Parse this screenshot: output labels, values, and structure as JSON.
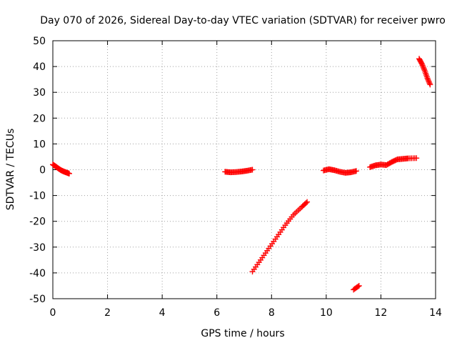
{
  "chart_data": {
    "type": "scatter",
    "title": "Day 070 of 2026, Sidereal Day-to-day VTEC variation (SDTVAR) for receiver pwro",
    "xlabel": "GPS time / hours",
    "ylabel": "SDTVAR / TECUs",
    "xlim": [
      0,
      14
    ],
    "ylim": [
      -50,
      50
    ],
    "xticks": [
      0,
      2,
      4,
      6,
      8,
      10,
      12,
      14
    ],
    "yticks": [
      -50,
      -40,
      -30,
      -20,
      -10,
      0,
      10,
      20,
      30,
      40,
      50
    ],
    "grid": true,
    "marker": "plus",
    "color": "#ff0000",
    "segments": [
      {
        "x": [
          0.0,
          0.1,
          0.2,
          0.3,
          0.4,
          0.5,
          0.6
        ],
        "y": [
          2.0,
          1.3,
          0.5,
          -0.2,
          -0.7,
          -1.1,
          -1.5
        ]
      },
      {
        "x": [
          6.3,
          6.5,
          6.7,
          6.9,
          7.1,
          7.3
        ],
        "y": [
          -0.8,
          -1.0,
          -0.9,
          -0.7,
          -0.4,
          0.0
        ]
      },
      {
        "x": [
          7.3,
          7.6,
          7.9,
          8.2,
          8.5,
          8.8,
          9.1,
          9.3
        ],
        "y": [
          -39.5,
          -35.0,
          -30.5,
          -26.0,
          -21.5,
          -17.5,
          -14.5,
          -12.5
        ]
      },
      {
        "x": [
          9.9,
          10.1,
          10.3,
          10.5,
          10.7,
          10.9,
          11.1
        ],
        "y": [
          -0.3,
          0.2,
          -0.2,
          -0.8,
          -1.2,
          -1.0,
          -0.5
        ]
      },
      {
        "x": [
          11.0,
          11.2
        ],
        "y": [
          -46.5,
          -45.0
        ]
      },
      {
        "x": [
          11.6,
          11.8,
          12.0,
          12.2,
          12.4,
          12.6,
          12.8,
          13.0,
          13.3
        ],
        "y": [
          1.0,
          1.7,
          2.0,
          1.8,
          3.0,
          4.0,
          4.2,
          4.4,
          4.5
        ]
      },
      {
        "x": [
          13.4,
          13.5,
          13.6,
          13.7,
          13.8
        ],
        "y": [
          43.0,
          41.0,
          38.5,
          35.5,
          33.0
        ]
      }
    ]
  }
}
